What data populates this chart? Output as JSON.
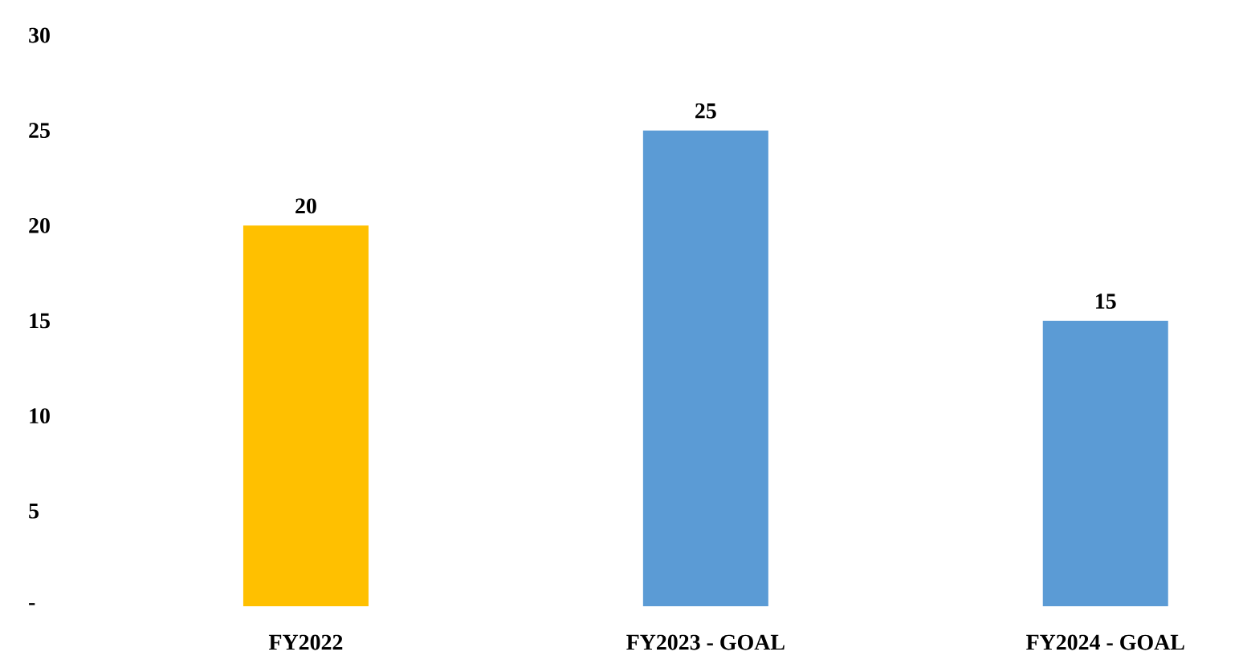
{
  "chart_data": {
    "type": "bar",
    "categories": [
      "FY2022",
      "FY2023 - GOAL",
      "FY2024 - GOAL"
    ],
    "values": [
      20,
      25,
      15
    ],
    "colors": [
      "#ffc000",
      "#5b9bd5",
      "#5b9bd5"
    ],
    "ylim": [
      0,
      30
    ],
    "yticks": [
      {
        "value": 0,
        "label": "-"
      },
      5,
      10,
      15,
      20,
      25,
      30
    ],
    "data_labels": true
  }
}
